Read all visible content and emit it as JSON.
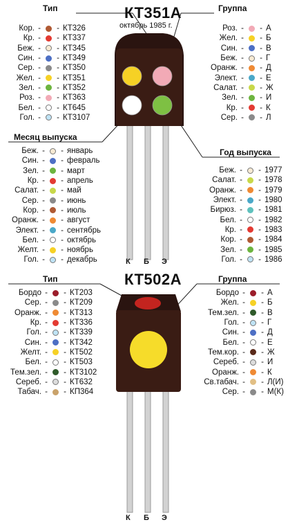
{
  "top": {
    "title": "КТ351А",
    "subtitle": "октябрь 1985 г.",
    "type_header": "Тип",
    "group_header": "Группа",
    "month_header": "Месяц выпуска",
    "year_header": "Год выпуска",
    "pins": [
      "К",
      "Б",
      "Э"
    ],
    "dot_colors": [
      "#f6d125",
      "#f2aab6",
      "#ffffff",
      "#7ec043"
    ],
    "type_rows": [
      {
        "label": "Кор.",
        "color": "#b05a34",
        "value": "КТ326"
      },
      {
        "label": "Кр.",
        "color": "#e33a32",
        "value": "КТ337"
      },
      {
        "label": "Беж.",
        "color": "#f7ead3",
        "value": "КТ345"
      },
      {
        "label": "Син.",
        "color": "#4d6fc4",
        "value": "КТ349"
      },
      {
        "label": "Сер.",
        "color": "#8a8a8a",
        "value": "КТ350"
      },
      {
        "label": "Жел.",
        "color": "#f6d125",
        "value": "КТ351"
      },
      {
        "label": "Зел.",
        "color": "#6db43f",
        "value": "КТ352"
      },
      {
        "label": "Роз.",
        "color": "#f2aab6",
        "value": "КТ363"
      },
      {
        "label": "Бел.",
        "color": "#ffffff",
        "value": "КТ645"
      },
      {
        "label": "Гол.",
        "color": "#bfe3f5",
        "value": "КТ3107"
      }
    ],
    "group_rows": [
      {
        "label": "Роз.",
        "color": "#f2aab6",
        "value": "А"
      },
      {
        "label": "Жел.",
        "color": "#f6d125",
        "value": "Б"
      },
      {
        "label": "Син.",
        "color": "#4d6fc4",
        "value": "В"
      },
      {
        "label": "Беж.",
        "color": "#f7ead3",
        "value": "Г"
      },
      {
        "label": "Оранж.",
        "color": "#ef8a34",
        "value": "Д"
      },
      {
        "label": "Элект.",
        "color": "#4aa8c8",
        "value": "Е"
      },
      {
        "label": "Салат.",
        "color": "#c8d84a",
        "value": "Ж"
      },
      {
        "label": "Зел.",
        "color": "#6db43f",
        "value": "И"
      },
      {
        "label": "Кр.",
        "color": "#e33a32",
        "value": "К"
      },
      {
        "label": "Сер.",
        "color": "#8a8a8a",
        "value": "Л"
      }
    ],
    "month_rows": [
      {
        "label": "Беж.",
        "color": "#f7ead3",
        "value": "январь"
      },
      {
        "label": "Син.",
        "color": "#4d6fc4",
        "value": "февраль"
      },
      {
        "label": "Зел.",
        "color": "#6db43f",
        "value": "март"
      },
      {
        "label": "Кр.",
        "color": "#e33a32",
        "value": "апрель"
      },
      {
        "label": "Салат.",
        "color": "#c8d84a",
        "value": "май"
      },
      {
        "label": "Сер.",
        "color": "#8a8a8a",
        "value": "июнь"
      },
      {
        "label": "Кор.",
        "color": "#b05a34",
        "value": "июль"
      },
      {
        "label": "Оранж.",
        "color": "#ef8a34",
        "value": "август"
      },
      {
        "label": "Элект.",
        "color": "#4aa8c8",
        "value": "сентябрь"
      },
      {
        "label": "Бел.",
        "color": "#ffffff",
        "value": "октябрь"
      },
      {
        "label": "Желт.",
        "color": "#f6d125",
        "value": "ноябрь"
      },
      {
        "label": "Гол.",
        "color": "#bfe3f5",
        "value": "декабрь"
      }
    ],
    "year_rows": [
      {
        "label": "Беж.",
        "color": "#f7ead3",
        "value": "1977"
      },
      {
        "label": "Салат.",
        "color": "#c8d84a",
        "value": "1978"
      },
      {
        "label": "Оранж.",
        "color": "#ef8a34",
        "value": "1979"
      },
      {
        "label": "Элект.",
        "color": "#4aa8c8",
        "value": "1980"
      },
      {
        "label": "Бирюз.",
        "color": "#5fc1bd",
        "value": "1981"
      },
      {
        "label": "Бел.",
        "color": "#ffffff",
        "value": "1982"
      },
      {
        "label": "Кр.",
        "color": "#e33a32",
        "value": "1983"
      },
      {
        "label": "Кор.",
        "color": "#b05a34",
        "value": "1984"
      },
      {
        "label": "Зел.",
        "color": "#6db43f",
        "value": "1985"
      },
      {
        "label": "Гол.",
        "color": "#bfe3f5",
        "value": "1986"
      }
    ]
  },
  "bottom": {
    "title": "КТ502А",
    "type_header": "Тип",
    "group_header": "Группа",
    "pins": [
      "К",
      "Б",
      "Э"
    ],
    "top_dot_color": "#c3241f",
    "big_dot_color": "#f6dc2a",
    "type_rows": [
      {
        "label": "Бордо",
        "color": "#9b1d2a",
        "value": "КТ203"
      },
      {
        "label": "Сер.",
        "color": "#8a8a8a",
        "value": "КТ209"
      },
      {
        "label": "Оранж.",
        "color": "#ef8a34",
        "value": "КТ313"
      },
      {
        "label": "Кр.",
        "color": "#e33a32",
        "value": "КТ336"
      },
      {
        "label": "Гол.",
        "color": "#bfe3f5",
        "value": "КТ339"
      },
      {
        "label": "Син.",
        "color": "#4d6fc4",
        "value": "КТ342"
      },
      {
        "label": "Желт.",
        "color": "#f6d125",
        "value": "КТ502"
      },
      {
        "label": "Бел.",
        "color": "#ffffff",
        "value": "КТ503"
      },
      {
        "label": "Тем.зел.",
        "color": "#2f5a2a",
        "value": "КТ3102"
      },
      {
        "label": "Сереб.",
        "color": "#dcdcdc",
        "value": "КТ632"
      },
      {
        "label": "Табач.",
        "color": "#c9a26a",
        "value": "КП364"
      }
    ],
    "group_rows": [
      {
        "label": "Бордо",
        "color": "#9b1d2a",
        "value": "А"
      },
      {
        "label": "Жел.",
        "color": "#f6d125",
        "value": "Б"
      },
      {
        "label": "Тем.зел.",
        "color": "#2f5a2a",
        "value": "В"
      },
      {
        "label": "Гол.",
        "color": "#bfe3f5",
        "value": "Г"
      },
      {
        "label": "Син.",
        "color": "#4d6fc4",
        "value": "Д"
      },
      {
        "label": "Бел.",
        "color": "#ffffff",
        "value": "Е"
      },
      {
        "label": "Тем.кор.",
        "color": "#5a2a1a",
        "value": "Ж"
      },
      {
        "label": "Сереб.",
        "color": "#dcdcdc",
        "value": "И"
      },
      {
        "label": "Оранж.",
        "color": "#ef8a34",
        "value": "К"
      },
      {
        "label": "Св.табач.",
        "color": "#e2bf85",
        "value": "Л(И)"
      },
      {
        "label": "Сер.",
        "color": "#8a8a8a",
        "value": "М(К)"
      }
    ]
  }
}
